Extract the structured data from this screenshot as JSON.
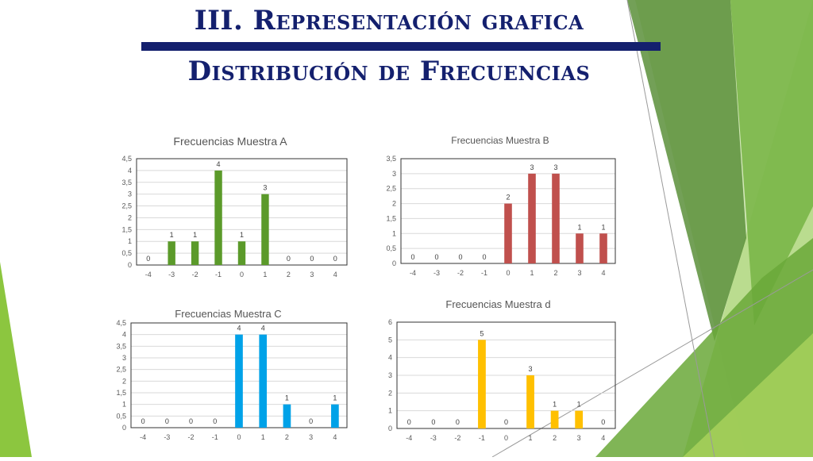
{
  "slide": {
    "title_line1": "III. Representación grafica",
    "title_line2": "Distribución de Frecuencias",
    "accent_color": "#14206e"
  },
  "chart_data": [
    {
      "type": "bar",
      "title": "Frecuencias Muestra A",
      "categories": [
        "-4",
        "-3",
        "-2",
        "-1",
        "0",
        "1",
        "2",
        "3",
        "4"
      ],
      "values": [
        0,
        1,
        1,
        4,
        1,
        3,
        0,
        0,
        0
      ],
      "ylim": [
        0,
        4.5
      ],
      "yticks": [
        "0",
        "0,5",
        "1",
        "1,5",
        "2",
        "2,5",
        "3",
        "3,5",
        "4",
        "4,5"
      ],
      "color": "#5b9a2a",
      "grid": true,
      "data_labels": true
    },
    {
      "type": "bar",
      "title": "Frecuencias Muestra B",
      "categories": [
        "-4",
        "-3",
        "-2",
        "-1",
        "0",
        "1",
        "2",
        "3",
        "4"
      ],
      "values": [
        0,
        0,
        0,
        0,
        2,
        3,
        3,
        1,
        1
      ],
      "ylim": [
        0,
        3.5
      ],
      "yticks": [
        "0",
        "0,5",
        "1",
        "1,5",
        "2",
        "2,5",
        "3",
        "3,5"
      ],
      "color": "#c0504d",
      "grid": true,
      "data_labels": true
    },
    {
      "type": "bar",
      "title": "Frecuencias Muestra C",
      "categories": [
        "-4",
        "-3",
        "-2",
        "-1",
        "0",
        "1",
        "2",
        "3",
        "4"
      ],
      "values": [
        0,
        0,
        0,
        0,
        4,
        4,
        1,
        0,
        1
      ],
      "ylim": [
        0,
        4.5
      ],
      "yticks": [
        "0",
        "0,5",
        "1",
        "1,5",
        "2",
        "2,5",
        "3",
        "3,5",
        "4",
        "4,5"
      ],
      "color": "#00a2e8",
      "grid": true,
      "data_labels": true
    },
    {
      "type": "bar",
      "title": "Frecuencias Muestra d",
      "categories": [
        "-4",
        "-3",
        "-2",
        "-1",
        "0",
        "1",
        "2",
        "3",
        "4"
      ],
      "values": [
        0,
        0,
        0,
        5,
        0,
        3,
        1,
        1,
        0
      ],
      "ylim": [
        0,
        6
      ],
      "yticks": [
        "0",
        "1",
        "2",
        "3",
        "4",
        "5",
        "6"
      ],
      "color": "#ffc000",
      "grid": true,
      "data_labels": true
    }
  ]
}
